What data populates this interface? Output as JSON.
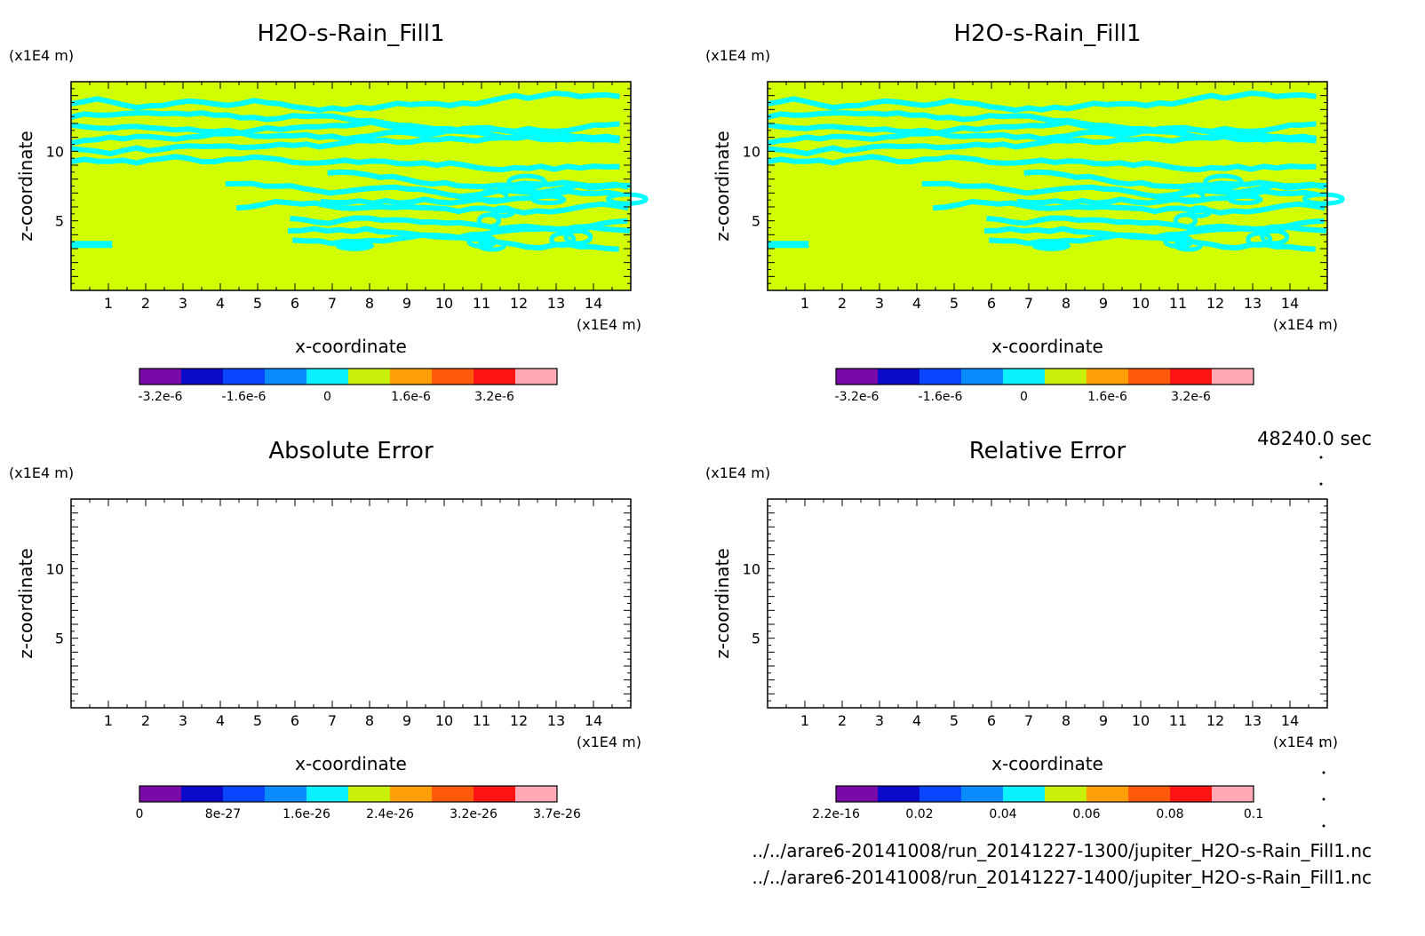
{
  "chart_data": [
    {
      "type": "heatmap",
      "title": "H2O-s-Rain_Fill1",
      "xlabel": "x-coordinate",
      "ylabel": "z-coordinate",
      "x_unit": "(x1E4 m)",
      "y_unit": "(x1E4 m)",
      "xlim": [
        0,
        15
      ],
      "ylim": [
        0,
        15
      ],
      "xticks": [
        "1",
        "2",
        "3",
        "4",
        "5",
        "6",
        "7",
        "8",
        "9",
        "10",
        "11",
        "12",
        "13",
        "14"
      ],
      "yticks": [
        "5",
        "10"
      ],
      "colorbar": {
        "colors": [
          "#7a0aa8",
          "#0a0ac8",
          "#0a46ff",
          "#0a8cff",
          "#0af0ff",
          "#c8f00a",
          "#ffa00a",
          "#ff5a0a",
          "#ff1414",
          "#ffaab4"
        ],
        "labels": [
          "-3.2e-6",
          "-1.6e-6",
          "0",
          "1.6e-6",
          "3.2e-6"
        ]
      },
      "fill_color": "#d2ff00",
      "contour_color": "#00ffff"
    },
    {
      "type": "heatmap",
      "title": "H2O-s-Rain_Fill1",
      "xlabel": "x-coordinate",
      "ylabel": "z-coordinate",
      "x_unit": "(x1E4 m)",
      "y_unit": "(x1E4 m)",
      "xlim": [
        0,
        15
      ],
      "ylim": [
        0,
        15
      ],
      "xticks": [
        "1",
        "2",
        "3",
        "4",
        "5",
        "6",
        "7",
        "8",
        "9",
        "10",
        "11",
        "12",
        "13",
        "14"
      ],
      "yticks": [
        "5",
        "10"
      ],
      "colorbar": {
        "colors": [
          "#7a0aa8",
          "#0a0ac8",
          "#0a46ff",
          "#0a8cff",
          "#0af0ff",
          "#c8f00a",
          "#ffa00a",
          "#ff5a0a",
          "#ff1414",
          "#ffaab4"
        ],
        "labels": [
          "-3.2e-6",
          "-1.6e-6",
          "0",
          "1.6e-6",
          "3.2e-6"
        ]
      },
      "fill_color": "#d2ff00",
      "contour_color": "#00ffff"
    },
    {
      "type": "heatmap",
      "title": "Absolute Error",
      "xlabel": "x-coordinate",
      "ylabel": "z-coordinate",
      "x_unit": "(x1E4 m)",
      "y_unit": "(x1E4 m)",
      "xlim": [
        0,
        15
      ],
      "ylim": [
        0,
        15
      ],
      "xticks": [
        "1",
        "2",
        "3",
        "4",
        "5",
        "6",
        "7",
        "8",
        "9",
        "10",
        "11",
        "12",
        "13",
        "14"
      ],
      "yticks": [
        "5",
        "10"
      ],
      "colorbar": {
        "colors": [
          "#7a0aa8",
          "#0a0ac8",
          "#0a46ff",
          "#0a8cff",
          "#0af0ff",
          "#c8f00a",
          "#ffa00a",
          "#ff5a0a",
          "#ff1414",
          "#ffaab4"
        ],
        "labels": [
          "0",
          "8e-27",
          "1.6e-26",
          "2.4e-26",
          "3.2e-26",
          "3.7e-26"
        ]
      },
      "fill_color": "",
      "contour_color": ""
    },
    {
      "type": "heatmap",
      "title": "Relative Error",
      "xlabel": "x-coordinate",
      "ylabel": "z-coordinate",
      "x_unit": "(x1E4 m)",
      "y_unit": "(x1E4 m)",
      "xlim": [
        0,
        15
      ],
      "ylim": [
        0,
        15
      ],
      "xticks": [
        "1",
        "2",
        "3",
        "4",
        "5",
        "6",
        "7",
        "8",
        "9",
        "10",
        "11",
        "12",
        "13",
        "14"
      ],
      "yticks": [
        "5",
        "10"
      ],
      "colorbar": {
        "colors": [
          "#7a0aa8",
          "#0a0ac8",
          "#0a46ff",
          "#0a8cff",
          "#0af0ff",
          "#c8f00a",
          "#ffa00a",
          "#ff5a0a",
          "#ff1414",
          "#ffaab4"
        ],
        "labels": [
          "2.2e-16",
          "0.02",
          "0.04",
          "0.06",
          "0.08",
          "0.1"
        ]
      },
      "fill_color": "",
      "contour_color": ""
    }
  ],
  "time_label": "48240.0 sec",
  "files": [
    "../../arare6-20141008/run_20141227-1300/jupiter_H2O-s-Rain_Fill1.nc",
    "../../arare6-20141008/run_20141227-1400/jupiter_H2O-s-Rain_Fill1.nc"
  ]
}
